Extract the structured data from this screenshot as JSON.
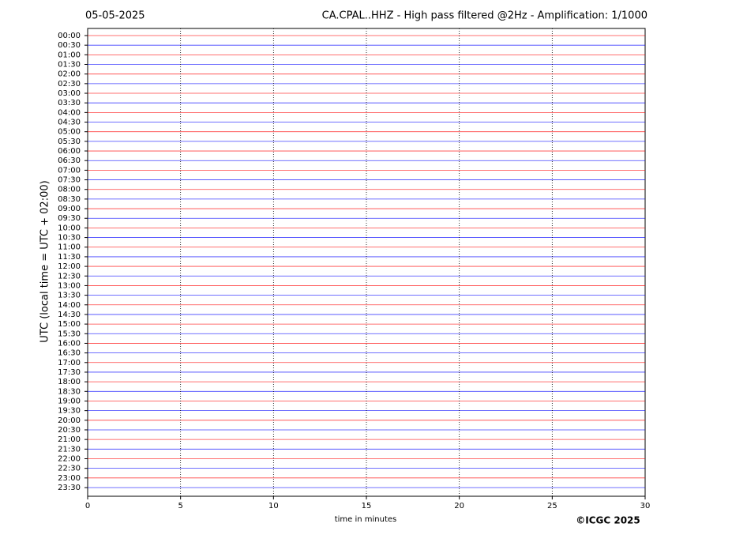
{
  "chart_data": {
    "type": "helicorder",
    "date": "05-05-2025",
    "title": "CA.CPAL..HHZ - High pass filtered @2Hz - Amplification: 1/1000",
    "ylabel": "UTC (local time = UTC + 02:00)",
    "xlabel": "time in minutes",
    "credit": "©ICGC 2025",
    "categories": [
      "00:00",
      "00:30",
      "01:00",
      "01:30",
      "02:00",
      "02:30",
      "03:00",
      "03:30",
      "04:00",
      "04:30",
      "05:00",
      "05:30",
      "06:00",
      "06:30",
      "07:00",
      "07:30",
      "08:00",
      "08:30",
      "09:00",
      "09:30",
      "10:00",
      "10:30",
      "11:00",
      "11:30",
      "12:00",
      "12:30",
      "13:00",
      "13:30",
      "14:00",
      "14:30",
      "15:00",
      "15:30",
      "16:00",
      "16:30",
      "17:00",
      "17:30",
      "18:00",
      "18:30",
      "19:00",
      "19:30",
      "20:00",
      "20:30",
      "21:00",
      "21:30",
      "22:00",
      "22:30",
      "23:00",
      "23:30"
    ],
    "row_colors": [
      "#ff0000",
      "#0000ff"
    ],
    "xlim": [
      0,
      30
    ],
    "xticks": [
      0,
      5,
      10,
      15,
      20,
      25,
      30
    ],
    "grid": true
  }
}
